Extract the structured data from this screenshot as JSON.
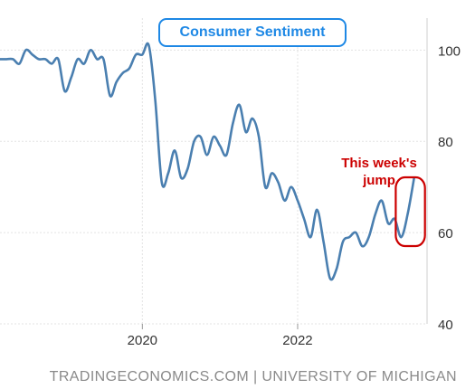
{
  "chart_data": {
    "type": "line",
    "title": "Consumer Sentiment",
    "x_ticks": [
      "2020",
      "2022"
    ],
    "y_ticks": [
      40,
      60,
      80,
      100
    ],
    "xlim": [
      "2018-03",
      "2023-09"
    ],
    "ylim": [
      40,
      107
    ],
    "grid": {
      "x": true,
      "y": true
    },
    "y_axis_side": "right",
    "line_color": "#4a7fb0",
    "annotation": {
      "line1": "This week's",
      "line2": "jump",
      "color": "#cc0000",
      "highlight_from": "2023-05",
      "highlight_to": "2023-07"
    },
    "series": [
      {
        "x": [
          "2018-03",
          "2018-04",
          "2018-05",
          "2018-06",
          "2018-07",
          "2018-08",
          "2018-09",
          "2018-10",
          "2018-11",
          "2018-12",
          "2019-01",
          "2019-02",
          "2019-03",
          "2019-04",
          "2019-05",
          "2019-06",
          "2019-07",
          "2019-08",
          "2019-09",
          "2019-10",
          "2019-11",
          "2019-12",
          "2020-01",
          "2020-02",
          "2020-03",
          "2020-04",
          "2020-05",
          "2020-06",
          "2020-07",
          "2020-08",
          "2020-09",
          "2020-10",
          "2020-11",
          "2020-12",
          "2021-01",
          "2021-02",
          "2021-03",
          "2021-04",
          "2021-05",
          "2021-06",
          "2021-07",
          "2021-08",
          "2021-09",
          "2021-10",
          "2021-11",
          "2021-12",
          "2022-01",
          "2022-02",
          "2022-03",
          "2022-04",
          "2022-05",
          "2022-06",
          "2022-07",
          "2022-08",
          "2022-09",
          "2022-10",
          "2022-11",
          "2022-12",
          "2023-01",
          "2023-02",
          "2023-03",
          "2023-04",
          "2023-05",
          "2023-06",
          "2023-07"
        ],
        "values": [
          98,
          98,
          98,
          97,
          100,
          99,
          98,
          98,
          97,
          98,
          91,
          94,
          98,
          97,
          100,
          98,
          98,
          90,
          93,
          95,
          96,
          99,
          99,
          101,
          89,
          71,
          73,
          78,
          72,
          74,
          80,
          81,
          77,
          81,
          79,
          77,
          84,
          88,
          82,
          85,
          81,
          70,
          73,
          71,
          67,
          70,
          67,
          63,
          59,
          65,
          58,
          50,
          52,
          58,
          59,
          60,
          57,
          59,
          64,
          67,
          62,
          63,
          59,
          64,
          72
        ]
      }
    ]
  },
  "title_box": {
    "text": "Consumer Sentiment"
  },
  "footer": {
    "source": "TRADINGECONOMICS.COM | UNIVERSITY OF MICHIGAN"
  }
}
